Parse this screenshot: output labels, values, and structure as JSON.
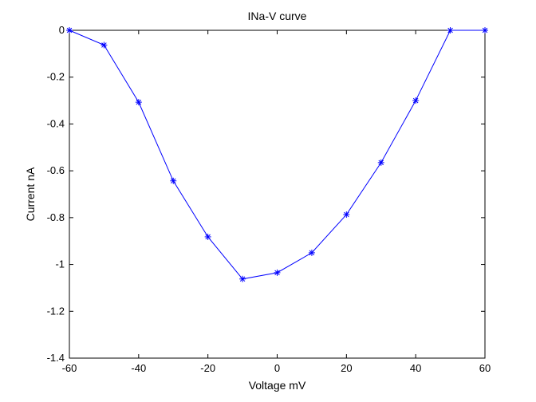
{
  "chart_data": {
    "type": "line",
    "title": "INa-V curve",
    "xlabel": "Voltage mV",
    "ylabel": "Current nA",
    "xlim": [
      -60,
      60
    ],
    "ylim": [
      -1.4,
      0
    ],
    "xticks": [
      -60,
      -40,
      -20,
      0,
      20,
      40,
      60
    ],
    "yticks": [
      0,
      -0.2,
      -0.4,
      -0.6,
      -0.8,
      -1,
      -1.2,
      -1.4
    ],
    "xtick_labels": [
      "-60",
      "-40",
      "-20",
      "0",
      "20",
      "40",
      "60"
    ],
    "ytick_labels": [
      "0",
      "-0.2",
      "-0.4",
      "-0.6",
      "-0.8",
      "-1",
      "-1.2",
      "-1.4"
    ],
    "grid": false,
    "series": [
      {
        "x": [
          -60,
          -50,
          -40,
          -30,
          -20,
          -10,
          0,
          10,
          20,
          30,
          40,
          50,
          60
        ],
        "values": [
          0,
          -0.063,
          -0.307,
          -0.643,
          -0.882,
          -1.062,
          -1.035,
          -0.95,
          -0.787,
          -0.565,
          -0.3,
          0,
          0
        ],
        "color": "#0000ff",
        "marker": "asterisk"
      }
    ]
  }
}
